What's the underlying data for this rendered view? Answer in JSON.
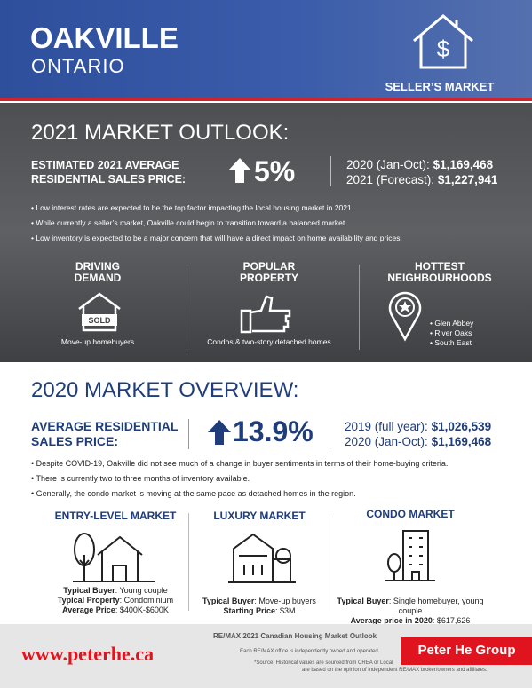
{
  "header": {
    "city": "OAKVILLE",
    "province": "ONTARIO",
    "badge": "SELLER’S MARKET"
  },
  "outlook": {
    "title": "2021 MARKET OUTLOOK:",
    "label": [
      "ESTIMATED 2021 AVERAGE",
      "RESIDENTIAL SALES PRICE:"
    ],
    "change": "5%",
    "prices": [
      {
        "period": "2020 (Jan-Oct):",
        "value": "$1,169,468"
      },
      {
        "period": "2021 (Forecast):",
        "value": "$1,227,941"
      }
    ],
    "bullets": [
      "Low interest rates are expected to be the top factor impacting the local housing market in 2021.",
      "While currently a seller’s market, Oakville could begin to transition toward a balanced market.",
      "Low inventory is expected to be a major concern that will have a direct impact on home availability and prices."
    ],
    "columns": [
      {
        "title": [
          "DRIVING",
          "DEMAND"
        ],
        "icon_text": "SOLD",
        "caption": "Move-up homebuyers"
      },
      {
        "title": [
          "POPULAR",
          "PROPERTY"
        ],
        "caption": "Condos & two-story detached homes"
      },
      {
        "title": [
          "HOTTEST",
          "NEIGHBOURHOODS"
        ],
        "items": [
          "Glen Abbey",
          "River Oaks",
          "South East"
        ]
      }
    ]
  },
  "overview": {
    "title": "2020 MARKET OVERVIEW:",
    "label": [
      "AVERAGE RESIDENTIAL",
      "SALES PRICE:"
    ],
    "change": "13.9%",
    "prices": [
      {
        "period": "2019 (full year):",
        "value": "$1,026,539"
      },
      {
        "period": "2020 (Jan-Oct):",
        "value": "$1,169,468"
      }
    ],
    "bullets": [
      "Despite COVID-19, Oakville did not see much of a change in buyer sentiments in terms of their home-buying criteria.",
      "There is currently two to three months of inventory available.",
      "Generally, the condo market is moving at the same pace as detached homes in the region."
    ],
    "markets": [
      {
        "title": "ENTRY-LEVEL MARKET",
        "details": [
          {
            "label": "Typical Buyer",
            "value": ": Young couple"
          },
          {
            "label": "Typical Property",
            "value": ": Condominium"
          },
          {
            "label": "Average Price",
            "value": ": $400K-$600K"
          }
        ]
      },
      {
        "title": "LUXURY MARKET",
        "details": [
          {
            "label": "Typical Buyer",
            "value": ": Move-up buyers"
          },
          {
            "label": "Starting Price",
            "value": ": $3M"
          }
        ]
      },
      {
        "title": "CONDO MARKET",
        "details": [
          {
            "label": "Typical Buyer",
            "value": ": Single homebuyer, young couple"
          },
          {
            "label": "Average price in 2020",
            "value": ": $617,626"
          }
        ]
      }
    ]
  },
  "footer": {
    "url": "www.peterhe.ca",
    "outlook": "RE/MAX 2021 Canadian Housing Market Outlook",
    "disclaimer": "Each RE/MAX office is independently owned and operated.",
    "source": [
      "*Source: Historical values are sourced from CREA or Local",
      "are based on the opinion of independent RE/MAX broker/owners and affiliates."
    ],
    "brand": "Peter He Group"
  }
}
